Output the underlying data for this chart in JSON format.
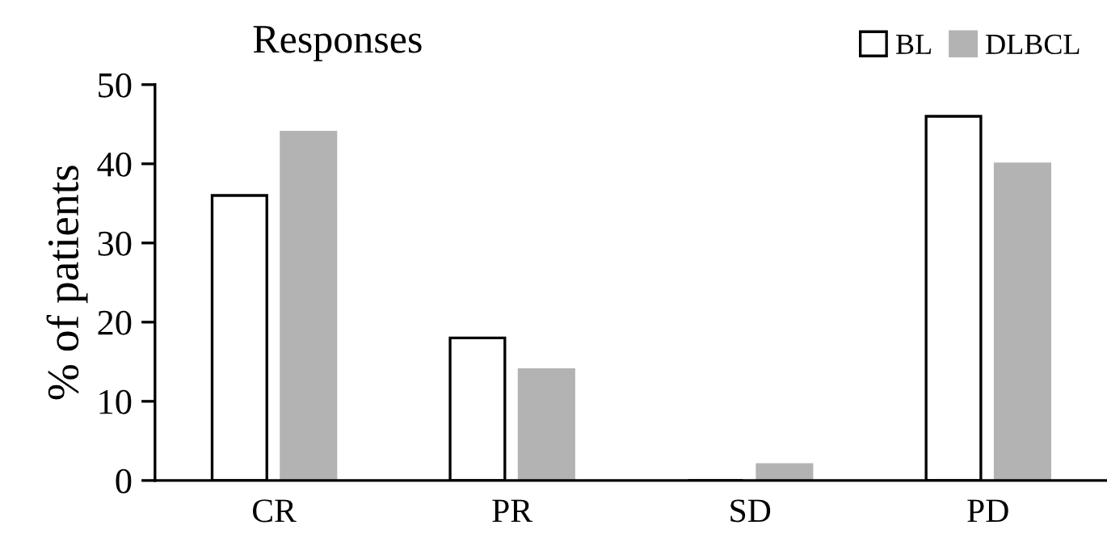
{
  "chart_data": {
    "type": "bar",
    "title": "Responses",
    "ylabel": "% of patients",
    "categories": [
      "CR",
      "PR",
      "SD",
      "PD"
    ],
    "series": [
      {
        "name": "BL",
        "color": "#ffffff",
        "values": [
          36,
          18,
          0,
          46
        ]
      },
      {
        "name": "DLBCL",
        "color": "#b3b3b3",
        "values": [
          44,
          14,
          2,
          40
        ]
      }
    ],
    "ylim": [
      0,
      50
    ],
    "yticks": [
      0,
      10,
      20,
      30,
      40,
      50
    ],
    "grid": false,
    "legend": "top right"
  }
}
